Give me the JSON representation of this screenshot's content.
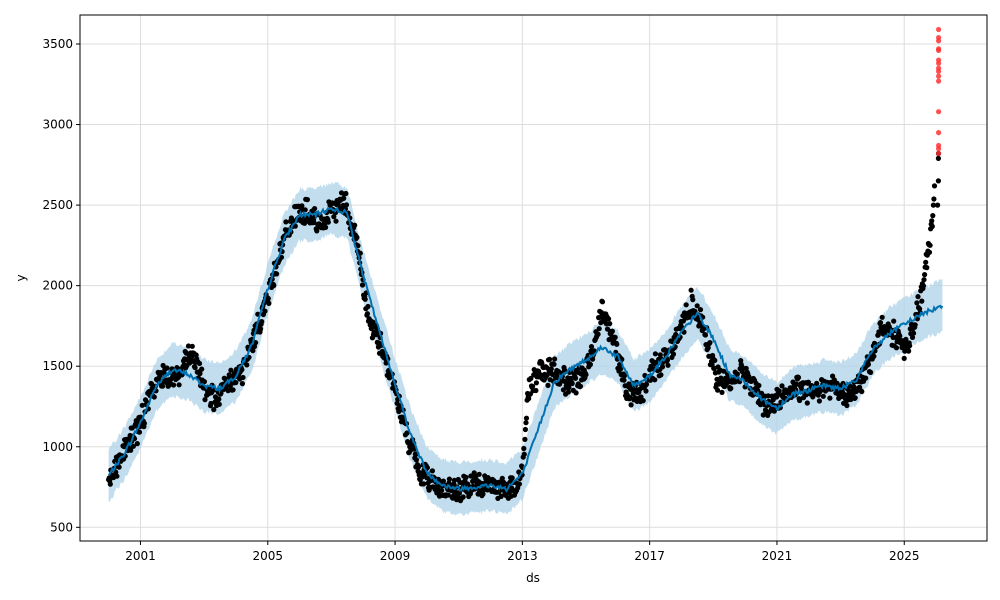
{
  "chart_data": {
    "type": "scatter",
    "xlabel": "ds",
    "ylabel": "y",
    "xlim": [
      1999.1,
      2027.6
    ],
    "ylim": [
      415,
      3680
    ],
    "grid": true,
    "x_ticks": [
      {
        "value": 2001,
        "label": "2001"
      },
      {
        "value": 2005,
        "label": "2005"
      },
      {
        "value": 2009,
        "label": "2009"
      },
      {
        "value": 2013,
        "label": "2013"
      },
      {
        "value": 2017,
        "label": "2017"
      },
      {
        "value": 2021,
        "label": "2021"
      },
      {
        "value": 2025,
        "label": "2025"
      }
    ],
    "y_ticks": [
      {
        "value": 500,
        "label": "500"
      },
      {
        "value": 1000,
        "label": "1000"
      },
      {
        "value": 1500,
        "label": "1500"
      },
      {
        "value": 2000,
        "label": "2000"
      },
      {
        "value": 2500,
        "label": "2500"
      },
      {
        "value": 3000,
        "label": "3000"
      },
      {
        "value": 3500,
        "label": "3500"
      }
    ],
    "colors": {
      "observed": "#000000",
      "forecast_line": "#0072B2",
      "uncertainty_band": "#b3d4ea",
      "outliers": "#ff3333"
    },
    "observed_anchors": [
      [
        2000.0,
        800
      ],
      [
        2000.5,
        980
      ],
      [
        2001.0,
        1140
      ],
      [
        2001.3,
        1320
      ],
      [
        2001.7,
        1450
      ],
      [
        2002.2,
        1440
      ],
      [
        2002.6,
        1580
      ],
      [
        2003.0,
        1380
      ],
      [
        2003.4,
        1280
      ],
      [
        2003.8,
        1410
      ],
      [
        2004.2,
        1460
      ],
      [
        2004.6,
        1700
      ],
      [
        2005.0,
        1930
      ],
      [
        2005.4,
        2230
      ],
      [
        2005.8,
        2420
      ],
      [
        2006.2,
        2460
      ],
      [
        2006.6,
        2370
      ],
      [
        2007.0,
        2450
      ],
      [
        2007.4,
        2540
      ],
      [
        2007.8,
        2270
      ],
      [
        2008.2,
        1760
      ],
      [
        2008.6,
        1620
      ],
      [
        2009.0,
        1350
      ],
      [
        2009.4,
        1060
      ],
      [
        2009.8,
        830
      ],
      [
        2010.2,
        790
      ],
      [
        2010.6,
        730
      ],
      [
        2011.0,
        720
      ],
      [
        2011.4,
        760
      ],
      [
        2011.8,
        760
      ],
      [
        2012.2,
        760
      ],
      [
        2012.6,
        730
      ],
      [
        2013.0,
        830
      ],
      [
        2013.2,
        1380
      ],
      [
        2013.6,
        1460
      ],
      [
        2014.0,
        1470
      ],
      [
        2014.4,
        1400
      ],
      [
        2014.8,
        1410
      ],
      [
        2015.2,
        1570
      ],
      [
        2015.5,
        1880
      ],
      [
        2015.9,
        1640
      ],
      [
        2016.3,
        1340
      ],
      [
        2016.7,
        1320
      ],
      [
        2017.1,
        1480
      ],
      [
        2017.5,
        1560
      ],
      [
        2017.9,
        1690
      ],
      [
        2018.3,
        1890
      ],
      [
        2018.7,
        1760
      ],
      [
        2019.1,
        1420
      ],
      [
        2019.5,
        1390
      ],
      [
        2019.9,
        1480
      ],
      [
        2020.3,
        1360
      ],
      [
        2020.7,
        1240
      ],
      [
        2021.1,
        1300
      ],
      [
        2021.5,
        1360
      ],
      [
        2021.9,
        1350
      ],
      [
        2022.3,
        1360
      ],
      [
        2022.7,
        1390
      ],
      [
        2023.1,
        1330
      ],
      [
        2023.5,
        1350
      ],
      [
        2023.9,
        1510
      ],
      [
        2024.3,
        1750
      ],
      [
        2024.7,
        1700
      ],
      [
        2025.1,
        1600
      ],
      [
        2025.5,
        1900
      ],
      [
        2025.8,
        2250
      ],
      [
        2025.95,
        2600
      ]
    ],
    "forecast_anchors": [
      [
        2000.0,
        820
      ],
      [
        2000.5,
        960
      ],
      [
        2001.0,
        1150
      ],
      [
        2001.5,
        1380
      ],
      [
        2002.0,
        1480
      ],
      [
        2002.5,
        1450
      ],
      [
        2003.0,
        1380
      ],
      [
        2003.5,
        1360
      ],
      [
        2004.0,
        1440
      ],
      [
        2004.5,
        1630
      ],
      [
        2005.0,
        1980
      ],
      [
        2005.5,
        2280
      ],
      [
        2006.0,
        2440
      ],
      [
        2006.5,
        2440
      ],
      [
        2007.0,
        2480
      ],
      [
        2007.5,
        2450
      ],
      [
        2008.0,
        2060
      ],
      [
        2008.5,
        1720
      ],
      [
        2009.0,
        1390
      ],
      [
        2009.5,
        1070
      ],
      [
        2010.0,
        840
      ],
      [
        2010.5,
        760
      ],
      [
        2011.0,
        740
      ],
      [
        2011.5,
        750
      ],
      [
        2012.0,
        760
      ],
      [
        2012.5,
        740
      ],
      [
        2013.0,
        830
      ],
      [
        2013.5,
        1110
      ],
      [
        2014.0,
        1400
      ],
      [
        2014.5,
        1480
      ],
      [
        2015.0,
        1540
      ],
      [
        2015.5,
        1620
      ],
      [
        2016.0,
        1560
      ],
      [
        2016.5,
        1380
      ],
      [
        2017.0,
        1440
      ],
      [
        2017.5,
        1560
      ],
      [
        2018.0,
        1710
      ],
      [
        2018.5,
        1830
      ],
      [
        2019.0,
        1670
      ],
      [
        2019.5,
        1450
      ],
      [
        2020.0,
        1400
      ],
      [
        2020.5,
        1300
      ],
      [
        2021.0,
        1240
      ],
      [
        2021.5,
        1330
      ],
      [
        2022.0,
        1350
      ],
      [
        2022.5,
        1380
      ],
      [
        2023.0,
        1360
      ],
      [
        2023.5,
        1420
      ],
      [
        2024.0,
        1600
      ],
      [
        2024.5,
        1700
      ],
      [
        2025.0,
        1760
      ],
      [
        2025.5,
        1820
      ],
      [
        2026.0,
        1860
      ],
      [
        2026.2,
        1880
      ]
    ],
    "band_halfwidth": 160,
    "outliers": {
      "x": 2026.08,
      "y": [
        2820,
        2850,
        2870,
        2950,
        3080,
        3270,
        3300,
        3330,
        3350,
        3380,
        3400,
        3460,
        3470,
        3520,
        3540,
        3590
      ]
    }
  }
}
